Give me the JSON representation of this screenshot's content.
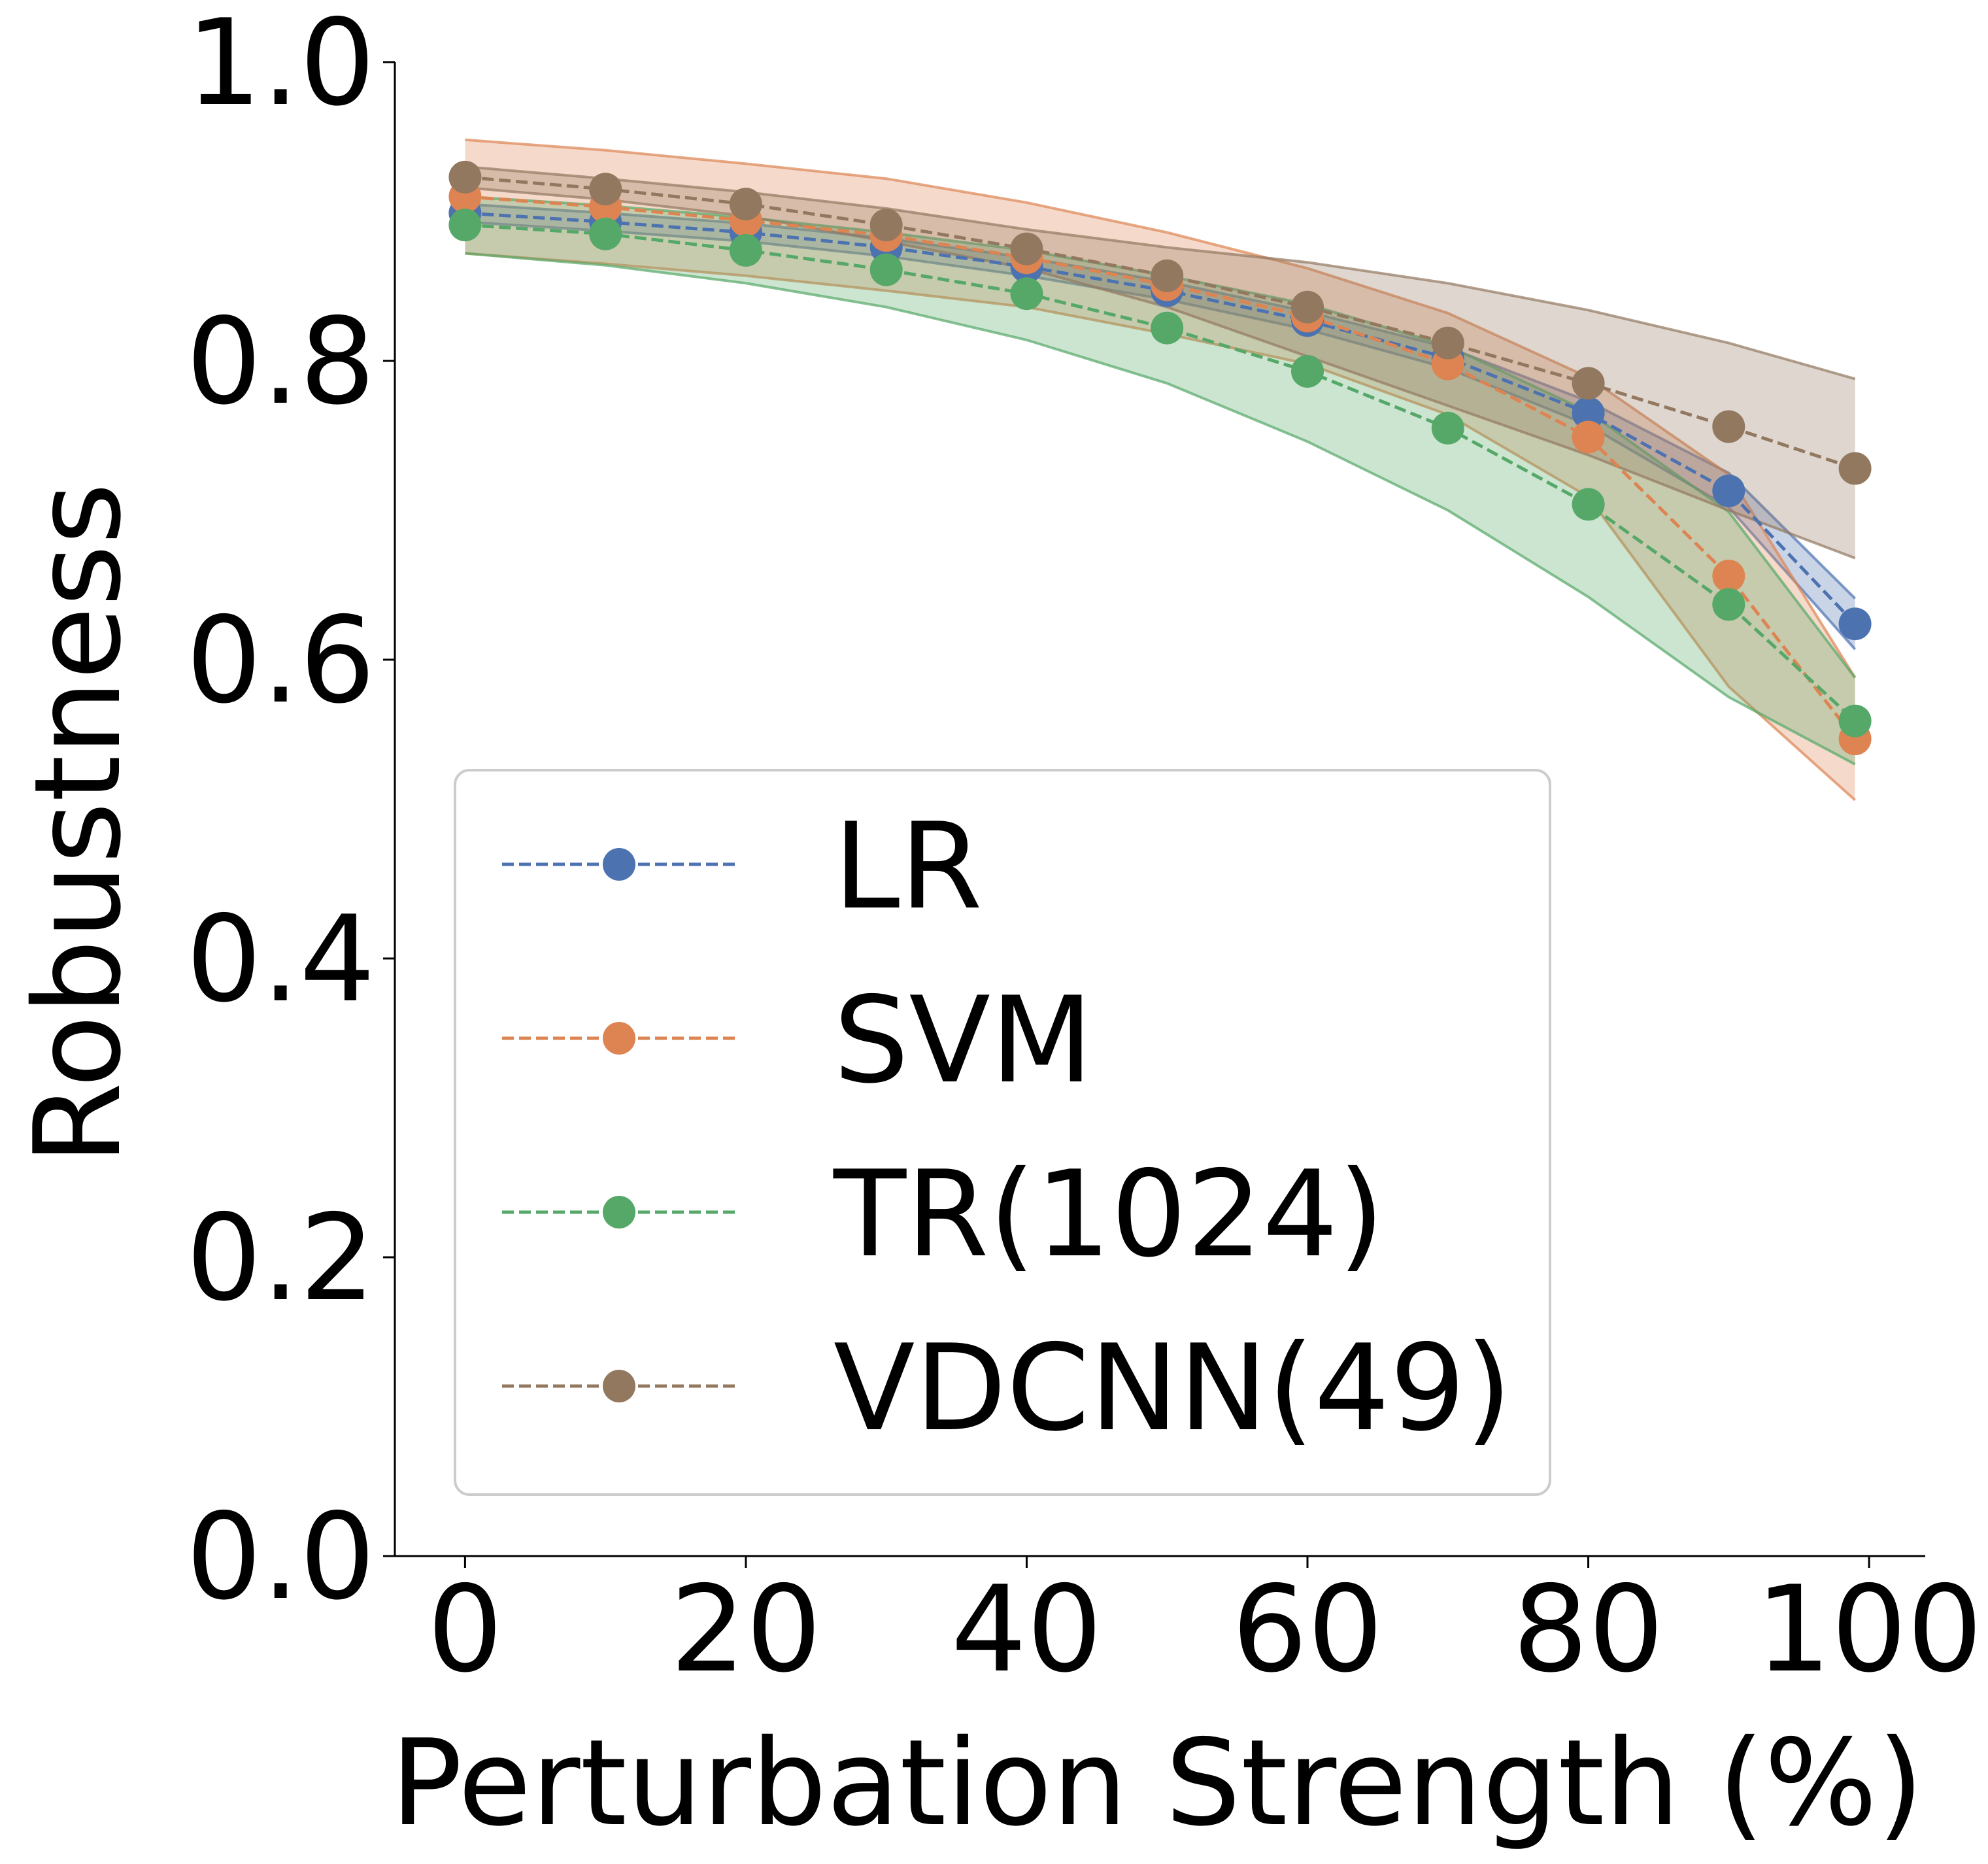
{
  "chart_data": {
    "type": "line",
    "title": "",
    "xlabel": "Perturbation Strength (%)",
    "ylabel": "Robustness",
    "xlim": [
      -5,
      104
    ],
    "ylim": [
      0.0,
      1.0
    ],
    "x_ticks": [
      0,
      20,
      40,
      60,
      80,
      100
    ],
    "y_ticks": [
      0.0,
      0.2,
      0.4,
      0.6,
      0.8,
      1.0
    ],
    "x_tick_labels": [
      "0",
      "20",
      "40",
      "60",
      "80",
      "100"
    ],
    "y_tick_labels": [
      "0.0",
      "0.2",
      "0.4",
      "0.6",
      "0.8",
      "1.0"
    ],
    "grid": false,
    "legend_position": "lower-left",
    "x": [
      0,
      10,
      20,
      30,
      40,
      50,
      60,
      70,
      80,
      90,
      99
    ],
    "series": [
      {
        "name": "LR",
        "color": "#4C72B0",
        "values": [
          0.899,
          0.893,
          0.886,
          0.876,
          0.863,
          0.847,
          0.827,
          0.802,
          0.765,
          0.713,
          0.624
        ],
        "lower": [
          0.893,
          0.887,
          0.88,
          0.87,
          0.857,
          0.841,
          0.821,
          0.795,
          0.757,
          0.702,
          0.607
        ],
        "upper": [
          0.905,
          0.899,
          0.892,
          0.882,
          0.869,
          0.853,
          0.833,
          0.809,
          0.773,
          0.725,
          0.641
        ]
      },
      {
        "name": "SVM",
        "color": "#DD8452",
        "values": [
          0.91,
          0.903,
          0.894,
          0.884,
          0.869,
          0.851,
          0.83,
          0.798,
          0.749,
          0.656,
          0.547
        ],
        "lower": [
          0.872,
          0.865,
          0.857,
          0.847,
          0.836,
          0.818,
          0.798,
          0.764,
          0.709,
          0.582,
          0.506
        ],
        "upper": [
          0.948,
          0.941,
          0.932,
          0.922,
          0.906,
          0.886,
          0.862,
          0.832,
          0.789,
          0.724,
          0.588
        ]
      },
      {
        "name": "TR(1024)",
        "color": "#55A868",
        "values": [
          0.891,
          0.885,
          0.874,
          0.861,
          0.845,
          0.822,
          0.793,
          0.755,
          0.704,
          0.637,
          0.559
        ],
        "lower": [
          0.872,
          0.864,
          0.852,
          0.836,
          0.814,
          0.785,
          0.746,
          0.7,
          0.642,
          0.575,
          0.53
        ],
        "upper": [
          0.91,
          0.904,
          0.896,
          0.886,
          0.874,
          0.857,
          0.838,
          0.81,
          0.766,
          0.699,
          0.588
        ]
      },
      {
        "name": "VDCNN(49)",
        "color": "#937860",
        "values": [
          0.923,
          0.915,
          0.905,
          0.891,
          0.875,
          0.857,
          0.836,
          0.812,
          0.785,
          0.756,
          0.728
        ],
        "lower": [
          0.916,
          0.908,
          0.897,
          0.88,
          0.862,
          0.836,
          0.803,
          0.77,
          0.737,
          0.7,
          0.668
        ],
        "upper": [
          0.93,
          0.922,
          0.913,
          0.902,
          0.888,
          0.876,
          0.866,
          0.852,
          0.834,
          0.812,
          0.788
        ]
      }
    ]
  }
}
